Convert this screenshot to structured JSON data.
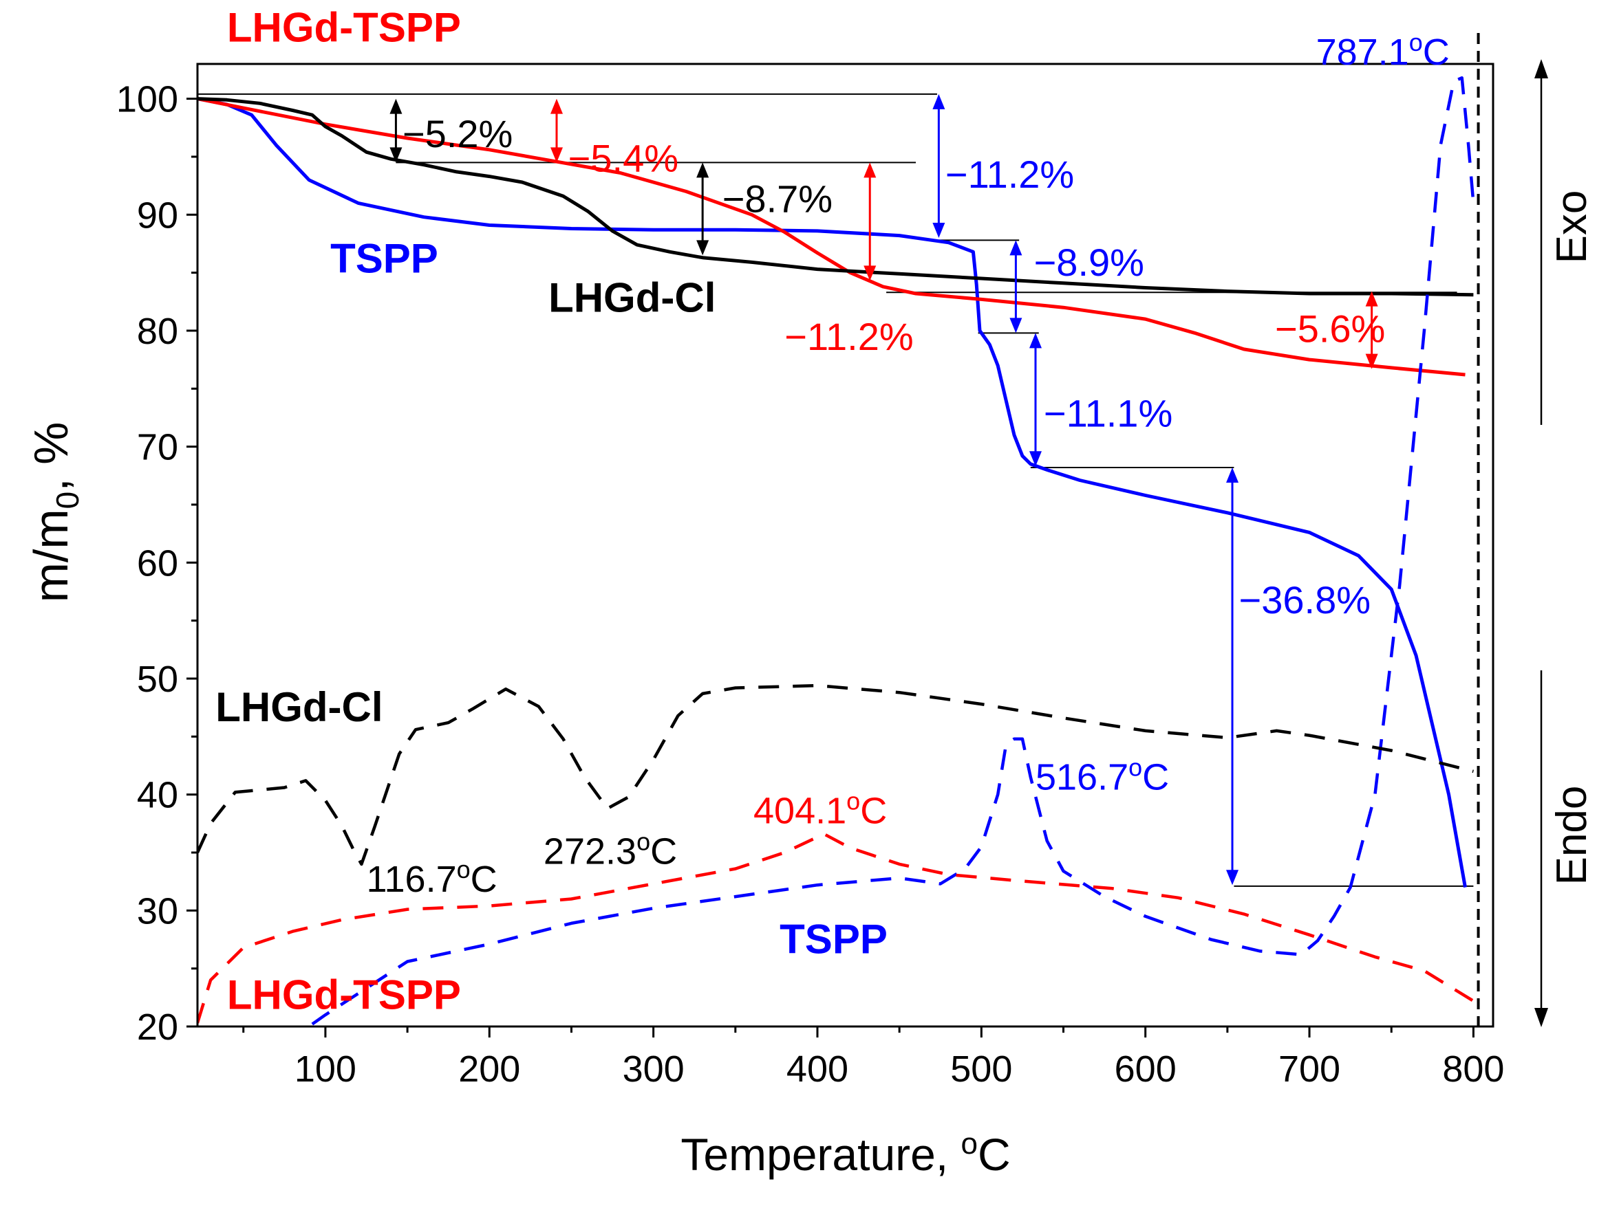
{
  "chart_data": {
    "type": "line",
    "title": "",
    "xlabel": "Temperature, °C",
    "xlabel_parts": {
      "pre": "Temperature, ",
      "sup": "o",
      "post": "C"
    },
    "ylabel": "m/m0, %",
    "ylabel_parts": {
      "pre": "m/m",
      "sub": "0",
      "post": ", %"
    },
    "xlim": [
      22,
      812
    ],
    "ylim": [
      20,
      103
    ],
    "x_ticks": [
      100,
      200,
      300,
      400,
      500,
      600,
      700,
      800
    ],
    "x_tick_labels": [
      "100",
      "200",
      "300",
      "400",
      "500",
      "600",
      "700",
      "800"
    ],
    "y_ticks": [
      20,
      30,
      40,
      50,
      60,
      70,
      80,
      90,
      100
    ],
    "y_tick_labels": [
      "20",
      "30",
      "40",
      "50",
      "60",
      "70",
      "80",
      "90",
      "100"
    ],
    "vertical_line_x": 803,
    "side_labels": {
      "exo": "Exo",
      "endo": "Endo"
    },
    "colors": {
      "LHGd-TSPP": "#ff0000",
      "TSPP": "#0000ff",
      "LHGd-Cl": "#000000"
    },
    "series": [
      {
        "name": "TSPP",
        "kind": "TG",
        "color": "#0000ff",
        "dashed": false,
        "points": [
          [
            22,
            100
          ],
          [
            40,
            99.5
          ],
          [
            55,
            98.6
          ],
          [
            70,
            96
          ],
          [
            90,
            93
          ],
          [
            120,
            91
          ],
          [
            160,
            89.8
          ],
          [
            200,
            89.1
          ],
          [
            250,
            88.8
          ],
          [
            300,
            88.7
          ],
          [
            350,
            88.7
          ],
          [
            400,
            88.6
          ],
          [
            450,
            88.2
          ],
          [
            480,
            87.6
          ],
          [
            495,
            86.8
          ],
          [
            497,
            84
          ],
          [
            499,
            80
          ],
          [
            505,
            78.8
          ],
          [
            510,
            77
          ],
          [
            515,
            74
          ],
          [
            520,
            71
          ],
          [
            525,
            69.2
          ],
          [
            530,
            68.5
          ],
          [
            540,
            68
          ],
          [
            560,
            67.1
          ],
          [
            600,
            65.8
          ],
          [
            650,
            64.3
          ],
          [
            700,
            62.6
          ],
          [
            730,
            60.6
          ],
          [
            750,
            57.7
          ],
          [
            765,
            52
          ],
          [
            775,
            46
          ],
          [
            785,
            40
          ],
          [
            795,
            32
          ]
        ]
      },
      {
        "name": "LHGd-TSPP",
        "kind": "TG",
        "color": "#ff0000",
        "dashed": false,
        "points": [
          [
            22,
            100
          ],
          [
            50,
            99.2
          ],
          [
            100,
            97.8
          ],
          [
            150,
            96.6
          ],
          [
            200,
            95.6
          ],
          [
            240,
            94.6
          ],
          [
            280,
            93.6
          ],
          [
            320,
            92
          ],
          [
            360,
            90
          ],
          [
            380,
            88.5
          ],
          [
            400,
            86.7
          ],
          [
            420,
            85
          ],
          [
            440,
            83.8
          ],
          [
            460,
            83.2
          ],
          [
            500,
            82.7
          ],
          [
            550,
            82
          ],
          [
            600,
            81
          ],
          [
            630,
            79.8
          ],
          [
            660,
            78.4
          ],
          [
            700,
            77.5
          ],
          [
            750,
            76.8
          ],
          [
            795,
            76.2
          ]
        ]
      },
      {
        "name": "LHGd-Cl",
        "kind": "TG",
        "color": "#000000",
        "dashed": false,
        "points": [
          [
            22,
            100
          ],
          [
            40,
            99.9
          ],
          [
            60,
            99.6
          ],
          [
            80,
            99
          ],
          [
            92,
            98.6
          ],
          [
            100,
            97.6
          ],
          [
            110,
            96.8
          ],
          [
            125,
            95.4
          ],
          [
            140,
            94.8
          ],
          [
            160,
            94.3
          ],
          [
            180,
            93.7
          ],
          [
            200,
            93.3
          ],
          [
            220,
            92.8
          ],
          [
            245,
            91.6
          ],
          [
            260,
            90.3
          ],
          [
            275,
            88.6
          ],
          [
            290,
            87.4
          ],
          [
            310,
            86.8
          ],
          [
            330,
            86.3
          ],
          [
            360,
            85.9
          ],
          [
            400,
            85.3
          ],
          [
            450,
            84.9
          ],
          [
            500,
            84.5
          ],
          [
            550,
            84.1
          ],
          [
            600,
            83.7
          ],
          [
            650,
            83.4
          ],
          [
            700,
            83.2
          ],
          [
            750,
            83.2
          ],
          [
            800,
            83.1
          ]
        ]
      },
      {
        "name": "TSPP",
        "kind": "DTA",
        "color": "#0000ff",
        "dashed": true,
        "points": [
          [
            92,
            20.2
          ],
          [
            100,
            21
          ],
          [
            150,
            25.6
          ],
          [
            200,
            27.1
          ],
          [
            250,
            28.9
          ],
          [
            300,
            30.2
          ],
          [
            350,
            31.2
          ],
          [
            400,
            32.2
          ],
          [
            450,
            32.8
          ],
          [
            475,
            32.3
          ],
          [
            490,
            33.6
          ],
          [
            500,
            35.5
          ],
          [
            510,
            40
          ],
          [
            515,
            44.3
          ],
          [
            520,
            44.8
          ],
          [
            525,
            44.8
          ],
          [
            530,
            41.5
          ],
          [
            540,
            36
          ],
          [
            550,
            33.4
          ],
          [
            575,
            31.2
          ],
          [
            600,
            29.5
          ],
          [
            640,
            27.5
          ],
          [
            670,
            26.5
          ],
          [
            695,
            26.2
          ],
          [
            705,
            27.4
          ],
          [
            715,
            29.5
          ],
          [
            725,
            32
          ],
          [
            740,
            40
          ],
          [
            755,
            58
          ],
          [
            770,
            80
          ],
          [
            780,
            96
          ],
          [
            788,
            101.5
          ],
          [
            793,
            101.8
          ],
          [
            797,
            96
          ],
          [
            800,
            91
          ]
        ]
      },
      {
        "name": "LHGd-TSPP",
        "kind": "DTA",
        "color": "#ff0000",
        "dashed": true,
        "points": [
          [
            22,
            20.3
          ],
          [
            30,
            24
          ],
          [
            50,
            26.8
          ],
          [
            80,
            28.2
          ],
          [
            110,
            29.2
          ],
          [
            150,
            30.1
          ],
          [
            200,
            30.4
          ],
          [
            250,
            31
          ],
          [
            300,
            32.3
          ],
          [
            350,
            33.6
          ],
          [
            380,
            35
          ],
          [
            404,
            36.6
          ],
          [
            420,
            35.4
          ],
          [
            450,
            34
          ],
          [
            480,
            33.1
          ],
          [
            520,
            32.6
          ],
          [
            580,
            31.9
          ],
          [
            620,
            31.1
          ],
          [
            660,
            29.7
          ],
          [
            700,
            27.9
          ],
          [
            740,
            26
          ],
          [
            770,
            24.8
          ],
          [
            800,
            22.2
          ]
        ]
      },
      {
        "name": "LHGd-Cl",
        "kind": "DTA",
        "color": "#000000",
        "dashed": true,
        "points": [
          [
            22,
            35
          ],
          [
            30,
            37.5
          ],
          [
            45,
            40.2
          ],
          [
            60,
            40.4
          ],
          [
            75,
            40.6
          ],
          [
            88,
            41.2
          ],
          [
            100,
            39.5
          ],
          [
            110,
            37.3
          ],
          [
            118,
            35
          ],
          [
            122,
            34
          ],
          [
            130,
            37.2
          ],
          [
            145,
            43.5
          ],
          [
            155,
            45.6
          ],
          [
            175,
            46.2
          ],
          [
            190,
            47.4
          ],
          [
            210,
            49.1
          ],
          [
            230,
            47.6
          ],
          [
            245,
            44.8
          ],
          [
            258,
            41.5
          ],
          [
            272,
            38.8
          ],
          [
            285,
            39.8
          ],
          [
            300,
            43
          ],
          [
            315,
            46.8
          ],
          [
            330,
            48.7
          ],
          [
            350,
            49.2
          ],
          [
            400,
            49.4
          ],
          [
            450,
            48.8
          ],
          [
            500,
            47.8
          ],
          [
            550,
            46.6
          ],
          [
            600,
            45.5
          ],
          [
            650,
            44.9
          ],
          [
            680,
            45.5
          ],
          [
            700,
            45.1
          ],
          [
            750,
            43.8
          ],
          [
            800,
            42
          ]
        ]
      }
    ],
    "series_labels": [
      {
        "id": "lbl-lhgd-tspp-tg",
        "text": "LHGd-TSPP",
        "color": "#ff0000",
        "x": 40,
        "y": 106.1
      },
      {
        "id": "lbl-tspp-tg",
        "text": "TSPP",
        "color": "#0000ff",
        "x": 103,
        "y": 86.2
      },
      {
        "id": "lbl-lhgd-cl-tg",
        "text": "LHGd-Cl",
        "color": "#000000",
        "x": 236,
        "y": 82.8
      },
      {
        "id": "lbl-lhgd-cl-dta",
        "text": "LHGd-Cl",
        "color": "#000000",
        "x": 33,
        "y": 47.5
      },
      {
        "id": "lbl-tspp-dta",
        "text": "TSPP",
        "color": "#0000ff",
        "x": 377,
        "y": 27.5
      },
      {
        "id": "lbl-lhgd-tspp-dta",
        "text": "LHGd-TSPP",
        "color": "#ff0000",
        "x": 40,
        "y": 22.7
      }
    ],
    "peak_labels": [
      {
        "id": "peak-787",
        "value": "787.1",
        "color": "#0000ff",
        "x": 704,
        "y": 104
      },
      {
        "id": "peak-516",
        "value": "516.7",
        "color": "#0000ff",
        "x": 533,
        "y": 41.5
      },
      {
        "id": "peak-404",
        "value": "404.1",
        "color": "#ff0000",
        "x": 361,
        "y": 38.6
      },
      {
        "id": "peak-272",
        "value": "272.3",
        "color": "#000000",
        "x": 233,
        "y": 35.1
      },
      {
        "id": "peak-116",
        "value": "116.7",
        "color": "#000000",
        "x": 125,
        "y": 32.7
      }
    ],
    "mass_loss_annotations": [
      {
        "text": "−5.2%",
        "color": "#000000",
        "x": 143,
        "y1": 100,
        "y2": 94.5,
        "tx": 147,
        "ty": 96.9
      },
      {
        "text": "−5.4%",
        "color": "#ff0000",
        "x": 241,
        "y1": 100,
        "y2": 94.5,
        "tx": 248,
        "ty": 94.8
      },
      {
        "text": "−8.7%",
        "color": "#000000",
        "x": 330,
        "y1": 94.5,
        "y2": 86.5,
        "tx": 342,
        "ty": 91.3
      },
      {
        "text": "−11.2%",
        "color": "#ff0000",
        "x": 432,
        "y1": 94.5,
        "y2": 84.3,
        "tx": 380,
        "ty": 79.4
      },
      {
        "text": "−11.2%",
        "color": "#0000ff",
        "x": 474,
        "y1": 100.4,
        "y2": 88,
        "tx": 478,
        "ty": 93.4
      },
      {
        "text": "−8.9%",
        "color": "#0000ff",
        "x": 521,
        "y1": 87.8,
        "y2": 79.8,
        "tx": 532,
        "ty": 85.8
      },
      {
        "text": "−11.1%",
        "color": "#0000ff",
        "x": 533,
        "y1": 79.8,
        "y2": 68.3,
        "tx": 538,
        "ty": 72.8
      },
      {
        "text": "−5.6%",
        "color": "#ff0000",
        "x": 738,
        "y1": 83.4,
        "y2": 76.7,
        "tx": 679,
        "ty": 80.1
      },
      {
        "text": "−36.8%",
        "color": "#0000ff",
        "x": 653,
        "y1": 68.2,
        "y2": 32.2,
        "tx": 657,
        "ty": 56.7
      }
    ],
    "reference_lines": [
      {
        "x1": 22,
        "x2": 473,
        "y": 100.4
      },
      {
        "x1": 143,
        "x2": 460,
        "y": 94.5
      },
      {
        "x1": 474,
        "x2": 523,
        "y": 87.8
      },
      {
        "x1": 498,
        "x2": 535,
        "y": 79.8
      },
      {
        "x1": 530,
        "x2": 654,
        "y": 68.2
      },
      {
        "x1": 654,
        "x2": 800,
        "y": 32.1
      },
      {
        "x1": 442,
        "x2": 790,
        "y": 83.3
      }
    ]
  }
}
